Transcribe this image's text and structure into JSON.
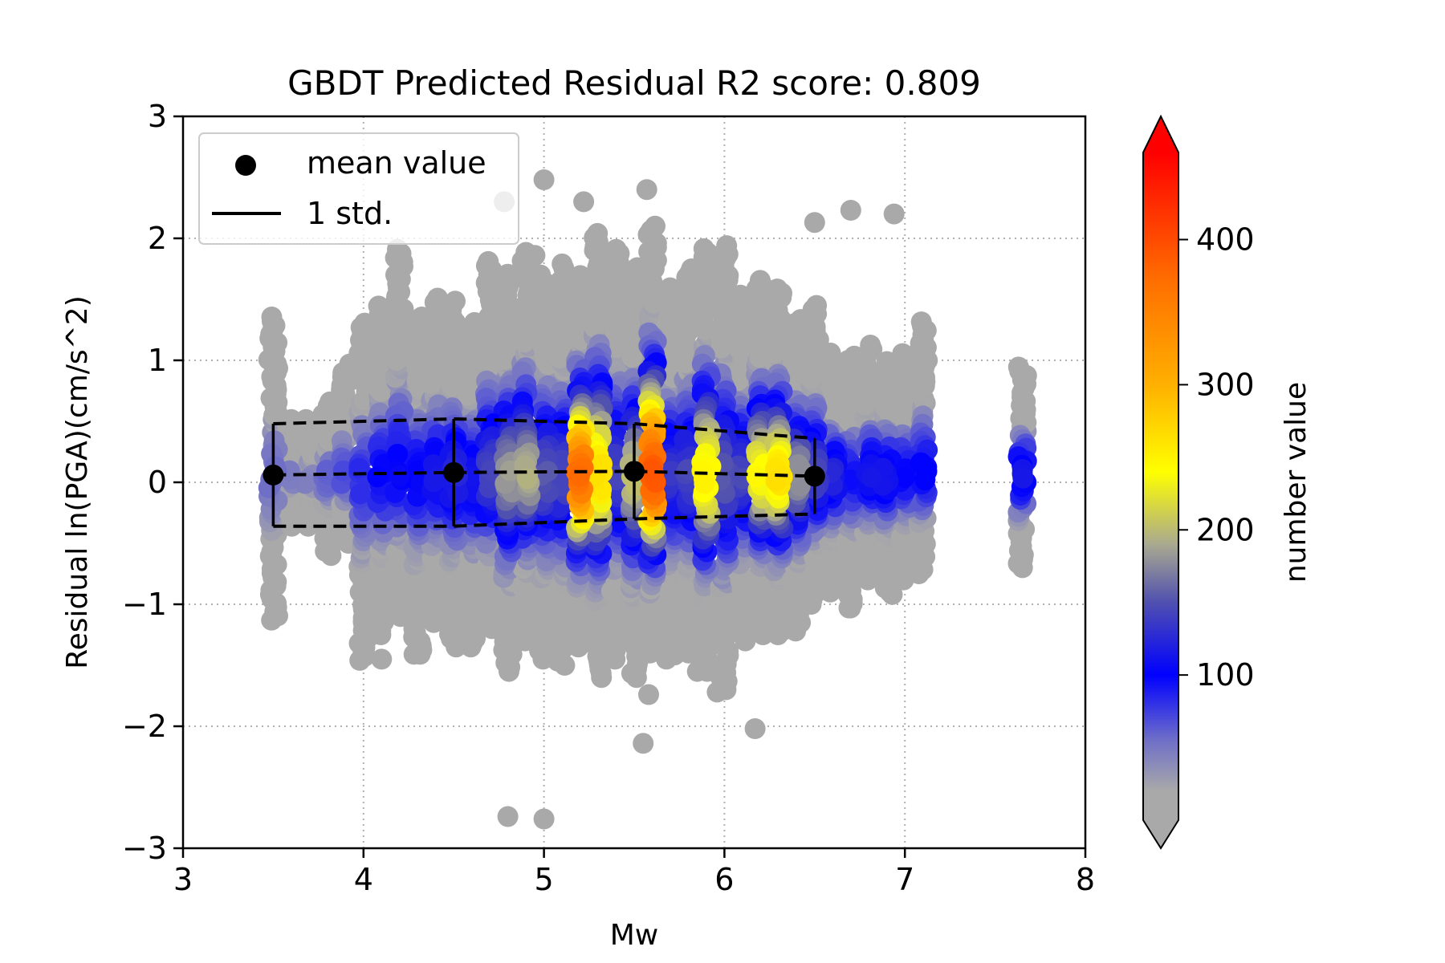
{
  "chart_data": {
    "type": "scatter",
    "title": "GBDT Predicted Residual R2 score: 0.809",
    "xlabel": "Mw",
    "ylabel": "Residual ln(PGA)(cm/s^2)",
    "xlim": [
      3,
      8
    ],
    "ylim": [
      -3,
      3
    ],
    "xticks": [
      3,
      4,
      5,
      6,
      7,
      8
    ],
    "yticks": [
      -3,
      -2,
      -1,
      0,
      1,
      2,
      3
    ],
    "xtick_labels": [
      "3",
      "4",
      "5",
      "6",
      "7",
      "8"
    ],
    "ytick_labels": [
      "−3",
      "−2",
      "−1",
      "0",
      "1",
      "2",
      "3"
    ],
    "grid": true,
    "legend_position": "top-left",
    "legend": {
      "mean_label": "mean value",
      "std_label": "1 std."
    },
    "colorbar": {
      "label": "number value",
      "ticks": [
        100,
        200,
        300,
        400
      ],
      "tick_labels": [
        "100",
        "200",
        "300",
        "400"
      ],
      "range": [
        0,
        460
      ],
      "extend": "both",
      "stops": [
        {
          "v": 0,
          "color": "#a9a9a9"
        },
        {
          "v": 20,
          "color": "#a9a9a9"
        },
        {
          "v": 55,
          "color": "#6f6fc8"
        },
        {
          "v": 100,
          "color": "#0000ff"
        },
        {
          "v": 150,
          "color": "#5050b0"
        },
        {
          "v": 190,
          "color": "#a9a990"
        },
        {
          "v": 240,
          "color": "#ffff00"
        },
        {
          "v": 300,
          "color": "#ffb000"
        },
        {
          "v": 370,
          "color": "#ff7000"
        },
        {
          "v": 460,
          "color": "#ff0000"
        }
      ],
      "under_color": "#a9a9a9",
      "over_color": "#ff0000"
    },
    "mean_points": [
      {
        "x": 3.5,
        "y": 0.06
      },
      {
        "x": 4.5,
        "y": 0.08
      },
      {
        "x": 5.5,
        "y": 0.09
      },
      {
        "x": 6.5,
        "y": 0.05
      }
    ],
    "std_upper": [
      {
        "x": 3.5,
        "y": 0.48
      },
      {
        "x": 4.5,
        "y": 0.52
      },
      {
        "x": 5.5,
        "y": 0.48
      },
      {
        "x": 6.5,
        "y": 0.36
      }
    ],
    "std_lower": [
      {
        "x": 3.5,
        "y": -0.36
      },
      {
        "x": 4.5,
        "y": -0.36
      },
      {
        "x": 5.5,
        "y": -0.3
      },
      {
        "x": 6.5,
        "y": -0.26
      }
    ],
    "magnitude_columns": [
      {
        "mw": 3.5,
        "ymin": -1.13,
        "ymax": 1.35,
        "peak": 55
      },
      {
        "mw": 3.6,
        "ymin": -0.36,
        "ymax": 0.5,
        "peak": 45
      },
      {
        "mw": 3.7,
        "ymin": -0.36,
        "ymax": 0.5,
        "peak": 45
      },
      {
        "mw": 3.8,
        "ymin": -0.6,
        "ymax": 0.65,
        "peak": 60
      },
      {
        "mw": 3.9,
        "ymin": -0.5,
        "ymax": 0.96,
        "peak": 70
      },
      {
        "mw": 4.0,
        "ymin": -1.46,
        "ymax": 1.3,
        "peak": 80
      },
      {
        "mw": 4.1,
        "ymin": -1.25,
        "ymax": 1.45,
        "peak": 95
      },
      {
        "mw": 4.2,
        "ymin": -1.1,
        "ymax": 1.9,
        "peak": 100
      },
      {
        "mw": 4.3,
        "ymin": -1.41,
        "ymax": 1.35,
        "peak": 100
      },
      {
        "mw": 4.4,
        "ymin": -1.15,
        "ymax": 1.5,
        "peak": 110
      },
      {
        "mw": 4.5,
        "ymin": -1.35,
        "ymax": 1.5,
        "peak": 120
      },
      {
        "mw": 4.6,
        "ymin": -1.35,
        "ymax": 1.3,
        "peak": 110
      },
      {
        "mw": 4.7,
        "ymin": -1.2,
        "ymax": 1.8,
        "peak": 140
      },
      {
        "mw": 4.8,
        "ymin": -1.55,
        "ymax": 1.7,
        "peak": 180
      },
      {
        "mw": 4.9,
        "ymin": -1.3,
        "ymax": 1.9,
        "peak": 190
      },
      {
        "mw": 5.0,
        "ymin": -1.45,
        "ymax": 1.7,
        "peak": 150
      },
      {
        "mw": 5.1,
        "ymin": -1.5,
        "ymax": 1.8,
        "peak": 140
      },
      {
        "mw": 5.2,
        "ymin": -1.35,
        "ymax": 1.7,
        "peak": 370
      },
      {
        "mw": 5.3,
        "ymin": -1.6,
        "ymax": 2.05,
        "peak": 260
      },
      {
        "mw": 5.4,
        "ymin": -1.45,
        "ymax": 1.9,
        "peak": 140
      },
      {
        "mw": 5.5,
        "ymin": -1.6,
        "ymax": 1.75,
        "peak": 200
      },
      {
        "mw": 5.6,
        "ymin": -1.4,
        "ymax": 2.1,
        "peak": 390
      },
      {
        "mw": 5.7,
        "ymin": -1.45,
        "ymax": 1.6,
        "peak": 130
      },
      {
        "mw": 5.8,
        "ymin": -1.4,
        "ymax": 1.75,
        "peak": 140
      },
      {
        "mw": 5.9,
        "ymin": -1.55,
        "ymax": 1.9,
        "peak": 250
      },
      {
        "mw": 6.0,
        "ymin": -1.7,
        "ymax": 1.95,
        "peak": 150
      },
      {
        "mw": 6.1,
        "ymin": -1.3,
        "ymax": 1.55,
        "peak": 140
      },
      {
        "mw": 6.2,
        "ymin": -1.25,
        "ymax": 1.65,
        "peak": 240
      },
      {
        "mw": 6.3,
        "ymin": -1.25,
        "ymax": 1.6,
        "peak": 260
      },
      {
        "mw": 6.4,
        "ymin": -1.22,
        "ymax": 1.35,
        "peak": 180
      },
      {
        "mw": 6.5,
        "ymin": -1.0,
        "ymax": 1.45,
        "peak": 140
      },
      {
        "mw": 6.6,
        "ymin": -0.9,
        "ymax": 1.05,
        "peak": 120
      },
      {
        "mw": 6.7,
        "ymin": -1.03,
        "ymax": 1.05,
        "peak": 90
      },
      {
        "mw": 6.8,
        "ymin": -0.8,
        "ymax": 1.14,
        "peak": 110
      },
      {
        "mw": 6.9,
        "ymin": -0.9,
        "ymax": 1.0,
        "peak": 110
      },
      {
        "mw": 7.0,
        "ymin": -0.8,
        "ymax": 1.05,
        "peak": 100
      },
      {
        "mw": 7.1,
        "ymin": -0.75,
        "ymax": 1.3,
        "peak": 100
      },
      {
        "mw": 7.65,
        "ymin": -0.7,
        "ymax": 0.93,
        "peak": 110
      }
    ],
    "outliers": [
      {
        "x": 4.8,
        "y": -2.74
      },
      {
        "x": 5.0,
        "y": -2.76
      },
      {
        "x": 5.55,
        "y": -2.14
      },
      {
        "x": 6.17,
        "y": -2.02
      },
      {
        "x": 5.58,
        "y": -1.74
      },
      {
        "x": 5.96,
        "y": -1.72
      },
      {
        "x": 4.78,
        "y": 2.3
      },
      {
        "x": 5.0,
        "y": 2.48
      },
      {
        "x": 5.22,
        "y": 2.3
      },
      {
        "x": 5.57,
        "y": 2.4
      },
      {
        "x": 6.5,
        "y": 2.13
      },
      {
        "x": 6.7,
        "y": 2.23
      },
      {
        "x": 6.94,
        "y": 2.2
      },
      {
        "x": 4.2,
        "y": 1.88
      },
      {
        "x": 4.95,
        "y": 1.86
      },
      {
        "x": 4.1,
        "y": -1.45
      },
      {
        "x": 4.28,
        "y": -1.41
      },
      {
        "x": 5.85,
        "y": -1.55
      },
      {
        "x": 6.69,
        "y": -1.03
      },
      {
        "x": 6.93,
        "y": -0.92
      }
    ]
  }
}
